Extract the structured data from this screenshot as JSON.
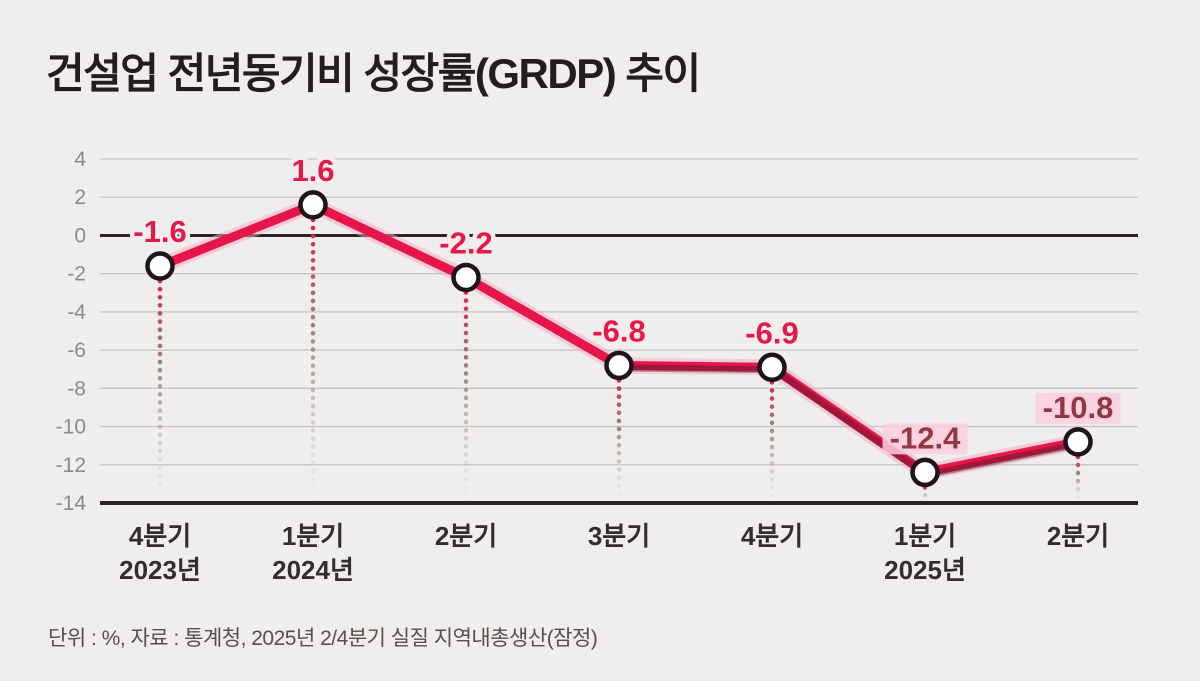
{
  "page": {
    "title": "건설업 전년동기비 성장률(GRDP) 추이",
    "footer": "단위 :  %, 자료 : 통계청, 2025년 2/4분기 실질 지역내총생산(잠정)"
  },
  "chart_data": {
    "type": "line",
    "title": "건설업 전년동기비 성장률(GRDP) 추이",
    "unit": "%",
    "categories": [
      "4분기",
      "1분기",
      "2분기",
      "3분기",
      "4분기",
      "1분기",
      "2분기"
    ],
    "category_years": [
      "2023년",
      "2024년",
      "",
      "",
      "",
      "2025년",
      ""
    ],
    "values": [
      -1.6,
      1.6,
      -2.2,
      -6.8,
      -6.9,
      -12.4,
      -10.8
    ],
    "point_labels": [
      "-1.6",
      "1.6",
      "-2.2",
      "-6.8",
      "-6.9",
      "-12.4",
      "-10.8"
    ],
    "highlighted_labels": [
      false,
      false,
      false,
      false,
      false,
      true,
      true
    ],
    "yticks": [
      4,
      2,
      0,
      -2,
      -4,
      -6,
      -8,
      -10,
      -12,
      -14
    ],
    "ylim": [
      -14,
      4
    ],
    "grid": true,
    "legend": "none",
    "colors": {
      "background": "#efeeec",
      "line": "#e7164a",
      "line_shadow": "#3d1622",
      "glow": "#f6a9c5",
      "marker_fill": "#ffffff",
      "marker_stroke": "#1d1516",
      "label_red": "#e8174b",
      "label_dark": "#8f3a43",
      "label_highlight": "#fbcfe0",
      "grid_line": "#c7c4c2",
      "zero_line": "#2b2425",
      "axis_line": "#2b2425",
      "x_label": "#332d2e",
      "y_label": "#8d8b8a",
      "title": "#231d1e",
      "footer": "#564f4d"
    }
  }
}
